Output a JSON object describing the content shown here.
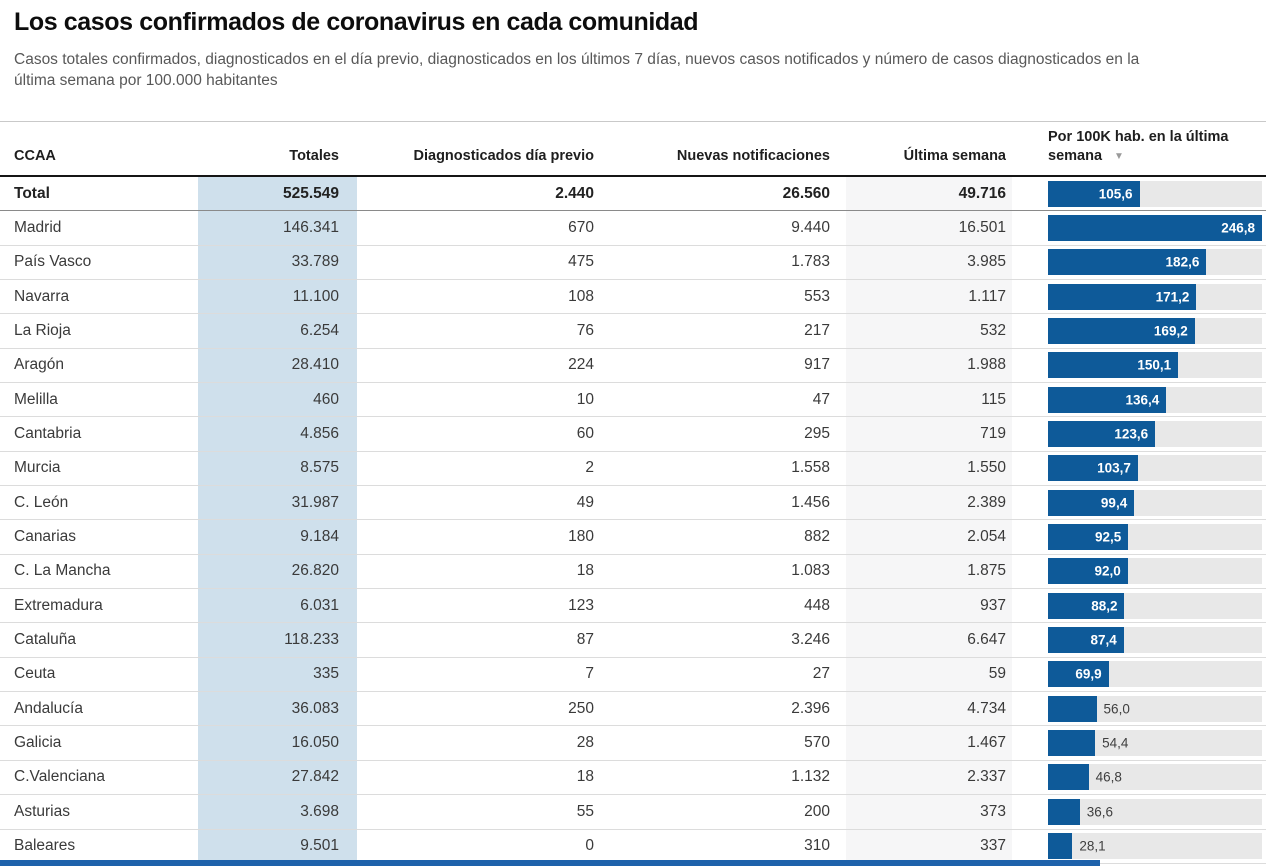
{
  "header": {
    "title": "Los casos confirmados de coronavirus en cada comunidad",
    "subtitle": "Casos totales confirmados, diagnosticados en el día previo, diagnosticados en los últimos 7 días, nuevos casos notificados y número de casos diagnosticados en la última semana por 100.000 habitantes"
  },
  "chart_data": {
    "type": "table",
    "title": "Los casos confirmados de coronavirus en cada comunidad",
    "columns": [
      "CCAA",
      "Totales",
      "Diagnosticados día previo",
      "Nuevas notificaciones",
      "Última semana",
      {
        "line1": "Por 100K hab. en la última",
        "line2": "semana",
        "full": "Por 100K hab. en la última semana"
      }
    ],
    "sort_icon": "▼",
    "sorted_by": "Por 100K hab. en la última semana",
    "bar_axis_max": 246.8,
    "inside_label_min": 60,
    "rows": [
      {
        "ccaa": "Total",
        "totales": "525.549",
        "previo": "2.440",
        "nuevas": "26.560",
        "semana": "49.716",
        "per100k": 105.6,
        "per100k_label": "105,6",
        "is_total": true
      },
      {
        "ccaa": "Madrid",
        "totales": "146.341",
        "previo": "670",
        "nuevas": "9.440",
        "semana": "16.501",
        "per100k": 246.8,
        "per100k_label": "246,8"
      },
      {
        "ccaa": "País Vasco",
        "totales": "33.789",
        "previo": "475",
        "nuevas": "1.783",
        "semana": "3.985",
        "per100k": 182.6,
        "per100k_label": "182,6"
      },
      {
        "ccaa": "Navarra",
        "totales": "11.100",
        "previo": "108",
        "nuevas": "553",
        "semana": "1.117",
        "per100k": 171.2,
        "per100k_label": "171,2"
      },
      {
        "ccaa": "La Rioja",
        "totales": "6.254",
        "previo": "76",
        "nuevas": "217",
        "semana": "532",
        "per100k": 169.2,
        "per100k_label": "169,2"
      },
      {
        "ccaa": "Aragón",
        "totales": "28.410",
        "previo": "224",
        "nuevas": "917",
        "semana": "1.988",
        "per100k": 150.1,
        "per100k_label": "150,1"
      },
      {
        "ccaa": "Melilla",
        "totales": "460",
        "previo": "10",
        "nuevas": "47",
        "semana": "115",
        "per100k": 136.4,
        "per100k_label": "136,4"
      },
      {
        "ccaa": "Cantabria",
        "totales": "4.856",
        "previo": "60",
        "nuevas": "295",
        "semana": "719",
        "per100k": 123.6,
        "per100k_label": "123,6"
      },
      {
        "ccaa": "Murcia",
        "totales": "8.575",
        "previo": "2",
        "nuevas": "1.558",
        "semana": "1.550",
        "per100k": 103.7,
        "per100k_label": "103,7"
      },
      {
        "ccaa": "C. León",
        "totales": "31.987",
        "previo": "49",
        "nuevas": "1.456",
        "semana": "2.389",
        "per100k": 99.4,
        "per100k_label": "99,4"
      },
      {
        "ccaa": "Canarias",
        "totales": "9.184",
        "previo": "180",
        "nuevas": "882",
        "semana": "2.054",
        "per100k": 92.5,
        "per100k_label": "92,5"
      },
      {
        "ccaa": "C. La Mancha",
        "totales": "26.820",
        "previo": "18",
        "nuevas": "1.083",
        "semana": "1.875",
        "per100k": 92.0,
        "per100k_label": "92,0"
      },
      {
        "ccaa": "Extremadura",
        "totales": "6.031",
        "previo": "123",
        "nuevas": "448",
        "semana": "937",
        "per100k": 88.2,
        "per100k_label": "88,2"
      },
      {
        "ccaa": "Cataluña",
        "totales": "118.233",
        "previo": "87",
        "nuevas": "3.246",
        "semana": "6.647",
        "per100k": 87.4,
        "per100k_label": "87,4"
      },
      {
        "ccaa": "Ceuta",
        "totales": "335",
        "previo": "7",
        "nuevas": "27",
        "semana": "59",
        "per100k": 69.9,
        "per100k_label": "69,9"
      },
      {
        "ccaa": "Andalucía",
        "totales": "36.083",
        "previo": "250",
        "nuevas": "2.396",
        "semana": "4.734",
        "per100k": 56.0,
        "per100k_label": "56,0"
      },
      {
        "ccaa": "Galicia",
        "totales": "16.050",
        "previo": "28",
        "nuevas": "570",
        "semana": "1.467",
        "per100k": 54.4,
        "per100k_label": "54,4"
      },
      {
        "ccaa": "C.Valenciana",
        "totales": "27.842",
        "previo": "18",
        "nuevas": "1.132",
        "semana": "2.337",
        "per100k": 46.8,
        "per100k_label": "46,8"
      },
      {
        "ccaa": "Asturias",
        "totales": "3.698",
        "previo": "55",
        "nuevas": "200",
        "semana": "373",
        "per100k": 36.6,
        "per100k_label": "36,6"
      },
      {
        "ccaa": "Baleares",
        "totales": "9.501",
        "previo": "0",
        "nuevas": "310",
        "semana": "337",
        "per100k": 28.1,
        "per100k_label": "28,1"
      }
    ]
  },
  "colors": {
    "bar": "#0e5a99",
    "bar_track": "#e8e8e8",
    "totales_column_bg": "#cfe0ec",
    "week_column_bg": "#f6f6f7",
    "bottom_accent": "#1e62ab"
  }
}
